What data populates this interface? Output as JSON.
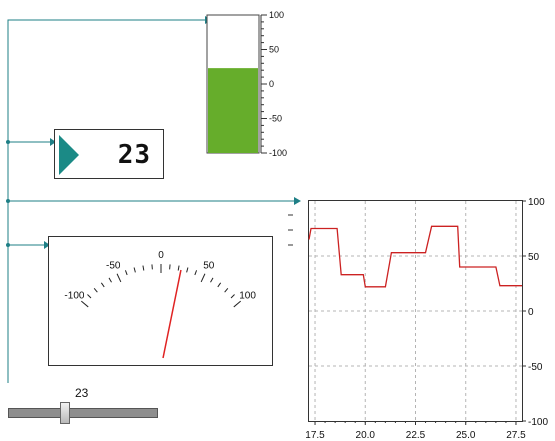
{
  "tank": {
    "value": 23,
    "min": -100,
    "max": 100,
    "ticks": [
      "100",
      "50",
      "0",
      "-50",
      "-100"
    ],
    "fill_color": "#66ad2b"
  },
  "lcd": {
    "value": "23",
    "arrow_color": "#1b8a86"
  },
  "gauge": {
    "value": 23,
    "min": -100,
    "max": 100,
    "tick_labels": [
      "-100",
      "-50",
      "0",
      "50",
      "100"
    ],
    "needle_color": "#e02222"
  },
  "slider": {
    "value_label": "23",
    "value": 23,
    "min": -100,
    "max": 100
  },
  "wire_color": "#1e7f86",
  "chart_data": {
    "type": "line",
    "title": "",
    "xlabel": "",
    "ylabel": "",
    "xlim": [
      17.2,
      27.8
    ],
    "ylim": [
      -100,
      100
    ],
    "x_tick_labels": [
      "17.5",
      "20.0",
      "22.5",
      "25.0",
      "27.5"
    ],
    "y_tick_labels": [
      "100",
      "50",
      "0",
      "-50",
      "-100"
    ],
    "grid": true,
    "series": [
      {
        "color": "#cc2222",
        "x": [
          17.2,
          17.3,
          18.6,
          18.8,
          19.9,
          20.0,
          21.0,
          21.3,
          23.0,
          23.3,
          24.6,
          24.7,
          26.5,
          26.7,
          27.8
        ],
        "y": [
          65,
          75,
          75,
          33,
          33,
          22,
          22,
          53,
          53,
          77,
          77,
          40,
          40,
          23,
          23
        ]
      }
    ]
  }
}
